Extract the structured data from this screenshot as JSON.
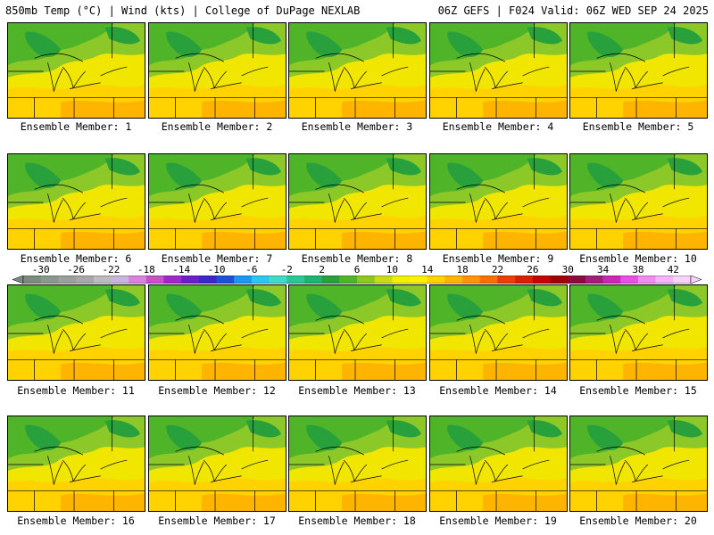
{
  "header": {
    "left_title": "850mb Temp (°C) | Wind (kts) | College of DuPage NEXLAB",
    "right_title": "06Z GEFS | F024 Valid: 06Z WED SEP 24 2025"
  },
  "colorbar": {
    "labels": [
      "-30",
      "-26",
      "-22",
      "-18",
      "-14",
      "-10",
      "-6",
      "-2",
      "2",
      "6",
      "10",
      "14",
      "18",
      "22",
      "26",
      "30",
      "34",
      "38",
      "42"
    ],
    "colors": [
      "#7c8c7c",
      "#8a9a8a",
      "#9aa09a",
      "#a8a8a8",
      "#bcbcbc",
      "#c8b4dc",
      "#dc82dc",
      "#c850c8",
      "#a028c8",
      "#6e1ec8",
      "#3c28c8",
      "#1e50dc",
      "#1e96f0",
      "#28c8f0",
      "#3cdcc8",
      "#28c896",
      "#1eb46e",
      "#28a03c",
      "#50b428",
      "#8cc81e",
      "#c8dc14",
      "#f0f000",
      "#fff000",
      "#ffd200",
      "#ffb400",
      "#ff9600",
      "#ff6e00",
      "#f03c00",
      "#dc1e00",
      "#c80000",
      "#a00000",
      "#8c0a3c",
      "#a01e78",
      "#c828b4",
      "#e650e6",
      "#f08cf0",
      "#f5b4f5",
      "#f8d2f8"
    ]
  },
  "members": [
    {
      "label": "Ensemble Member: 1"
    },
    {
      "label": "Ensemble Member: 2"
    },
    {
      "label": "Ensemble Member: 3"
    },
    {
      "label": "Ensemble Member: 4"
    },
    {
      "label": "Ensemble Member: 5"
    },
    {
      "label": "Ensemble Member: 6"
    },
    {
      "label": "Ensemble Member: 7"
    },
    {
      "label": "Ensemble Member: 8"
    },
    {
      "label": "Ensemble Member: 9"
    },
    {
      "label": "Ensemble Member: 10"
    },
    {
      "label": "Ensemble Member: 11"
    },
    {
      "label": "Ensemble Member: 12"
    },
    {
      "label": "Ensemble Member: 13"
    },
    {
      "label": "Ensemble Member: 14"
    },
    {
      "label": "Ensemble Member: 15"
    },
    {
      "label": "Ensemble Member: 16"
    },
    {
      "label": "Ensemble Member: 17"
    },
    {
      "label": "Ensemble Member: 18"
    },
    {
      "label": "Ensemble Member: 19"
    },
    {
      "label": "Ensemble Member: 20"
    }
  ]
}
